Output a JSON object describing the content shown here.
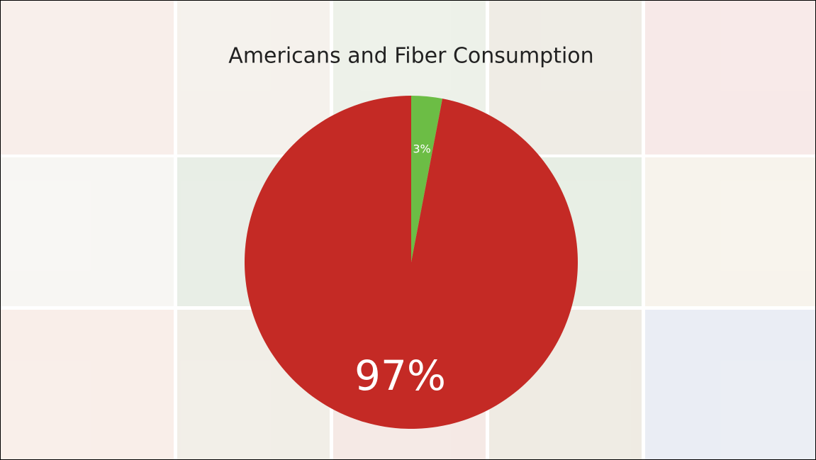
{
  "chart_data": {
    "type": "pie",
    "title": "Americans and Fiber Consumption",
    "values": [
      3,
      97
    ],
    "value_labels": [
      "3%",
      "97%"
    ],
    "colors": [
      "#6cbd45",
      "#c42a25"
    ]
  }
}
